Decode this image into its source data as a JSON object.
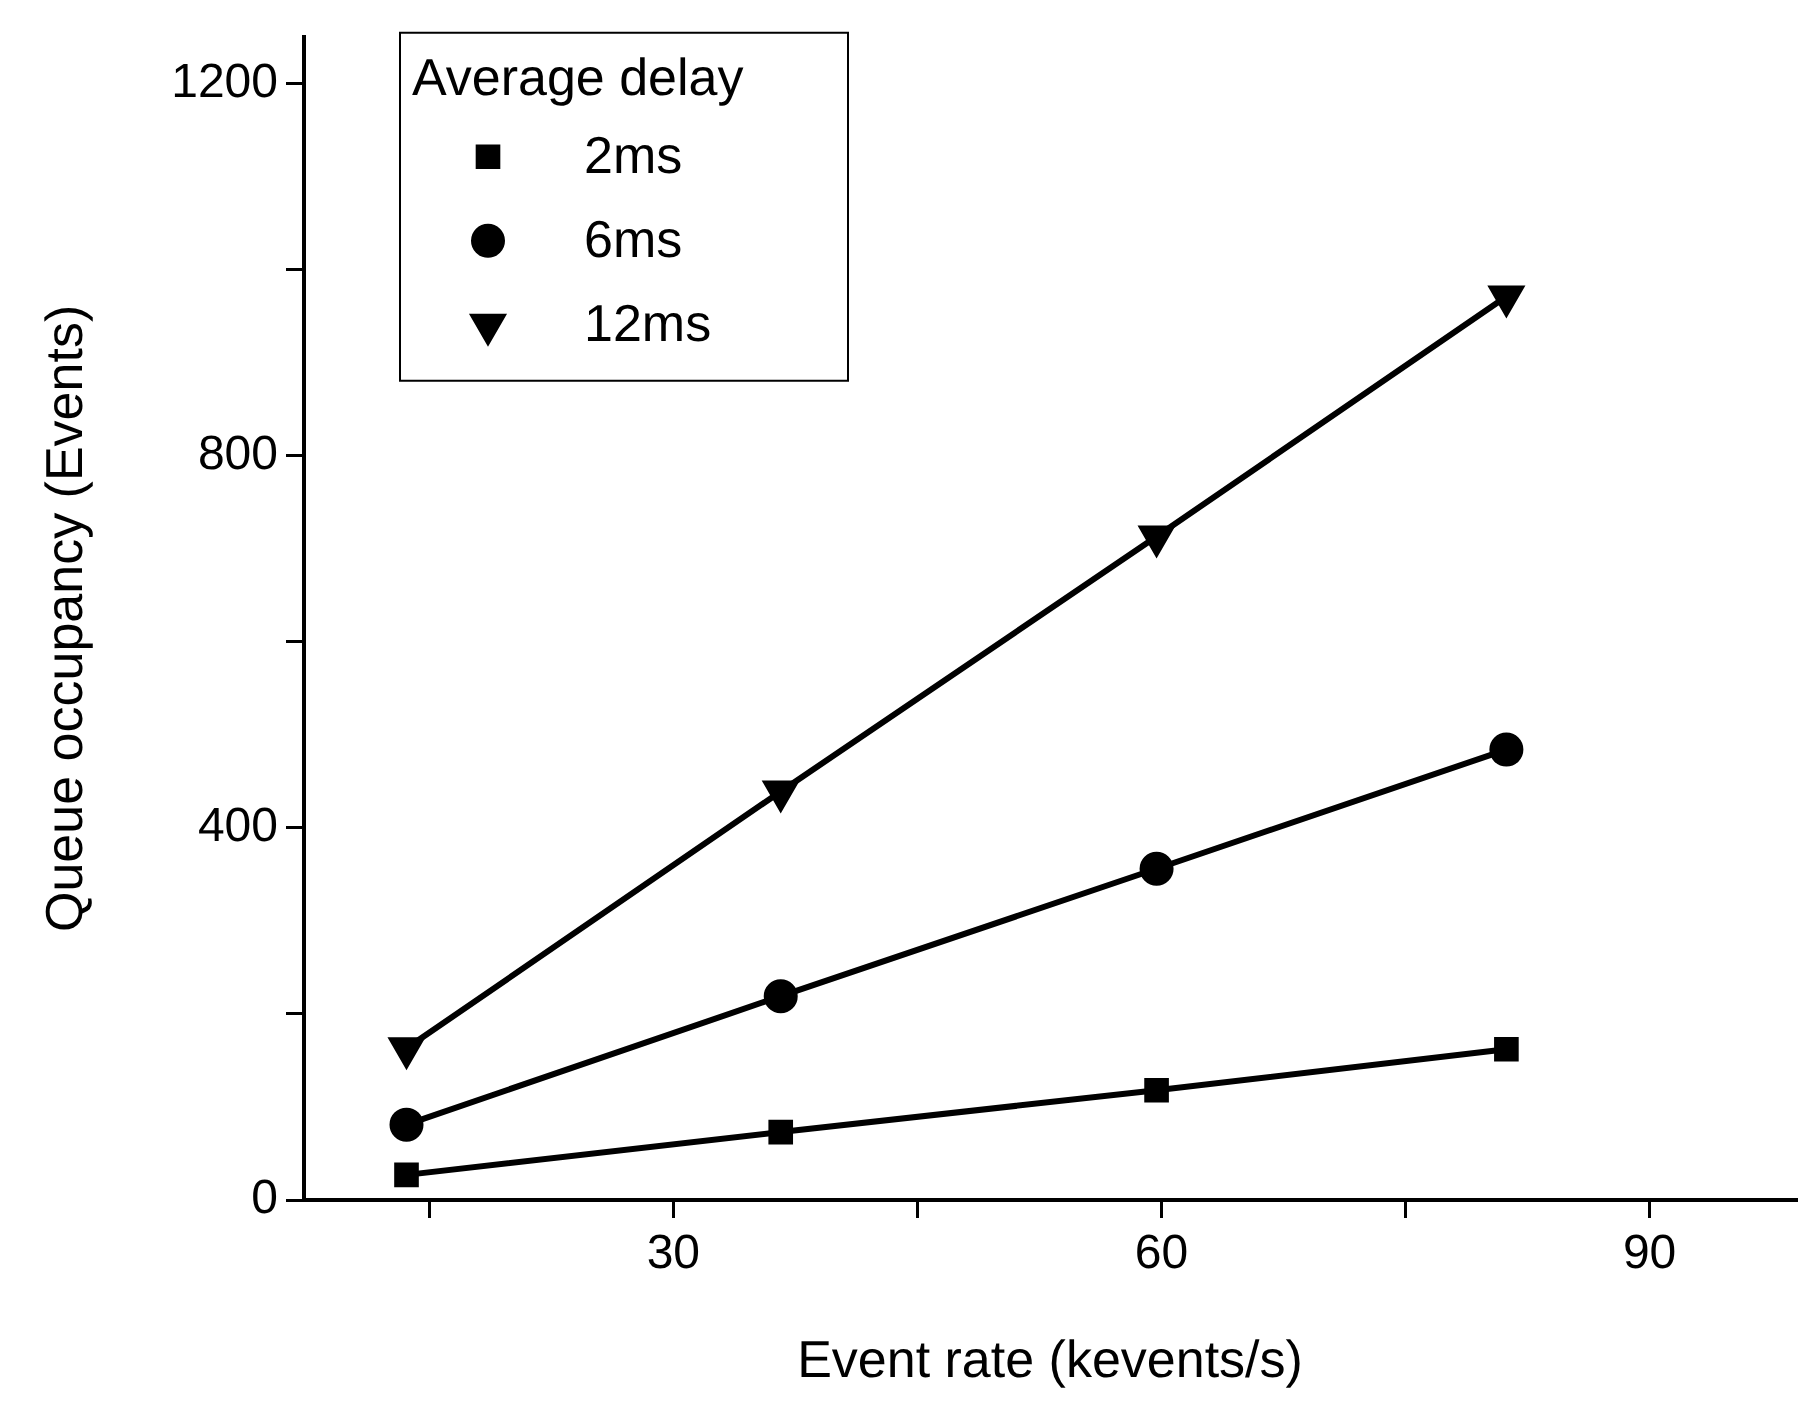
{
  "chart_data": {
    "type": "line",
    "xlabel": "Event rate (kevents/s)",
    "ylabel": "Queue occupancy (Events)",
    "legend_title": "Average delay",
    "legend": "top left",
    "grid": false,
    "line_style": "solid",
    "x": [
      13.6,
      36.6,
      59.7,
      81.2
    ],
    "xlim": [
      7.3,
      99
    ],
    "xticks": [
      {
        "value": 15,
        "label": null
      },
      30,
      {
        "value": 45,
        "label": null
      },
      60,
      {
        "value": 75,
        "label": null
      },
      90
    ],
    "ylim": [
      0,
      1250
    ],
    "yticks": [
      0,
      {
        "value": 200,
        "label": null
      },
      400,
      {
        "value": 600,
        "label": null
      },
      800,
      {
        "value": 1000,
        "label": null
      },
      1200
    ],
    "series": [
      {
        "name": "2ms",
        "color": "#000000",
        "marker": "square",
        "values": [
          27,
          73,
          118,
          162
        ]
      },
      {
        "name": "6ms",
        "color": "#000000",
        "marker": "circle",
        "values": [
          81,
          219,
          356,
          484
        ]
      },
      {
        "name": "12ms",
        "color": "#000000",
        "marker": "triangle",
        "values": [
          163,
          439,
          713,
          971
        ]
      }
    ]
  }
}
